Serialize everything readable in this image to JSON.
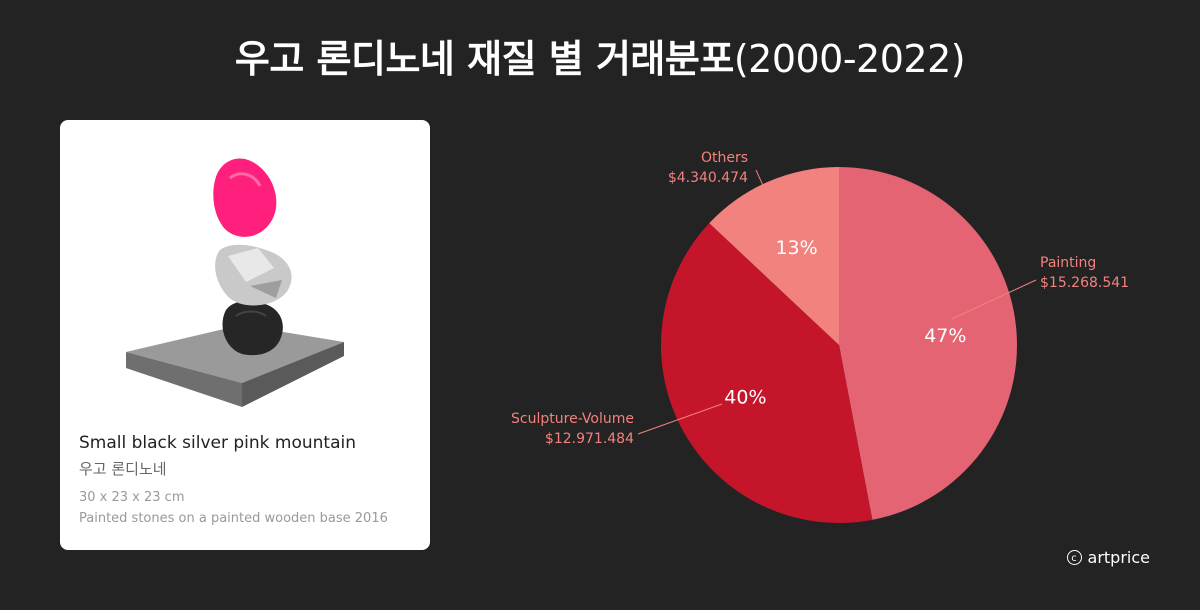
{
  "title": {
    "main": "우고 론디노네 재질 별 거래분포",
    "years": "(2000-2022)"
  },
  "artwork": {
    "title": "Small black silver pink mountain",
    "artist": "우고 론디노네",
    "dimensions": "30 x 23 x 23 cm",
    "medium": "Painted stones on a painted wooden base  2016"
  },
  "logo": {
    "symbol": "c",
    "text": "artprice"
  },
  "chart_data": {
    "type": "pie",
    "start_angle_deg": 0,
    "direction": "clockwise",
    "slices": [
      {
        "label": "Painting",
        "amount": "$15.268.541",
        "value": 47,
        "pct_label": "47%",
        "color": "#e46474"
      },
      {
        "label": "Sculpture-Volume",
        "amount": "$12.971.484",
        "value": 40,
        "pct_label": "40%",
        "color": "#c5152a"
      },
      {
        "label": "Others",
        "amount": "$4.340.474",
        "value": 13,
        "pct_label": "13%",
        "color": "#f2827d"
      }
    ],
    "label_color": "#f2827d",
    "leader_line_color": "#f2827d"
  }
}
